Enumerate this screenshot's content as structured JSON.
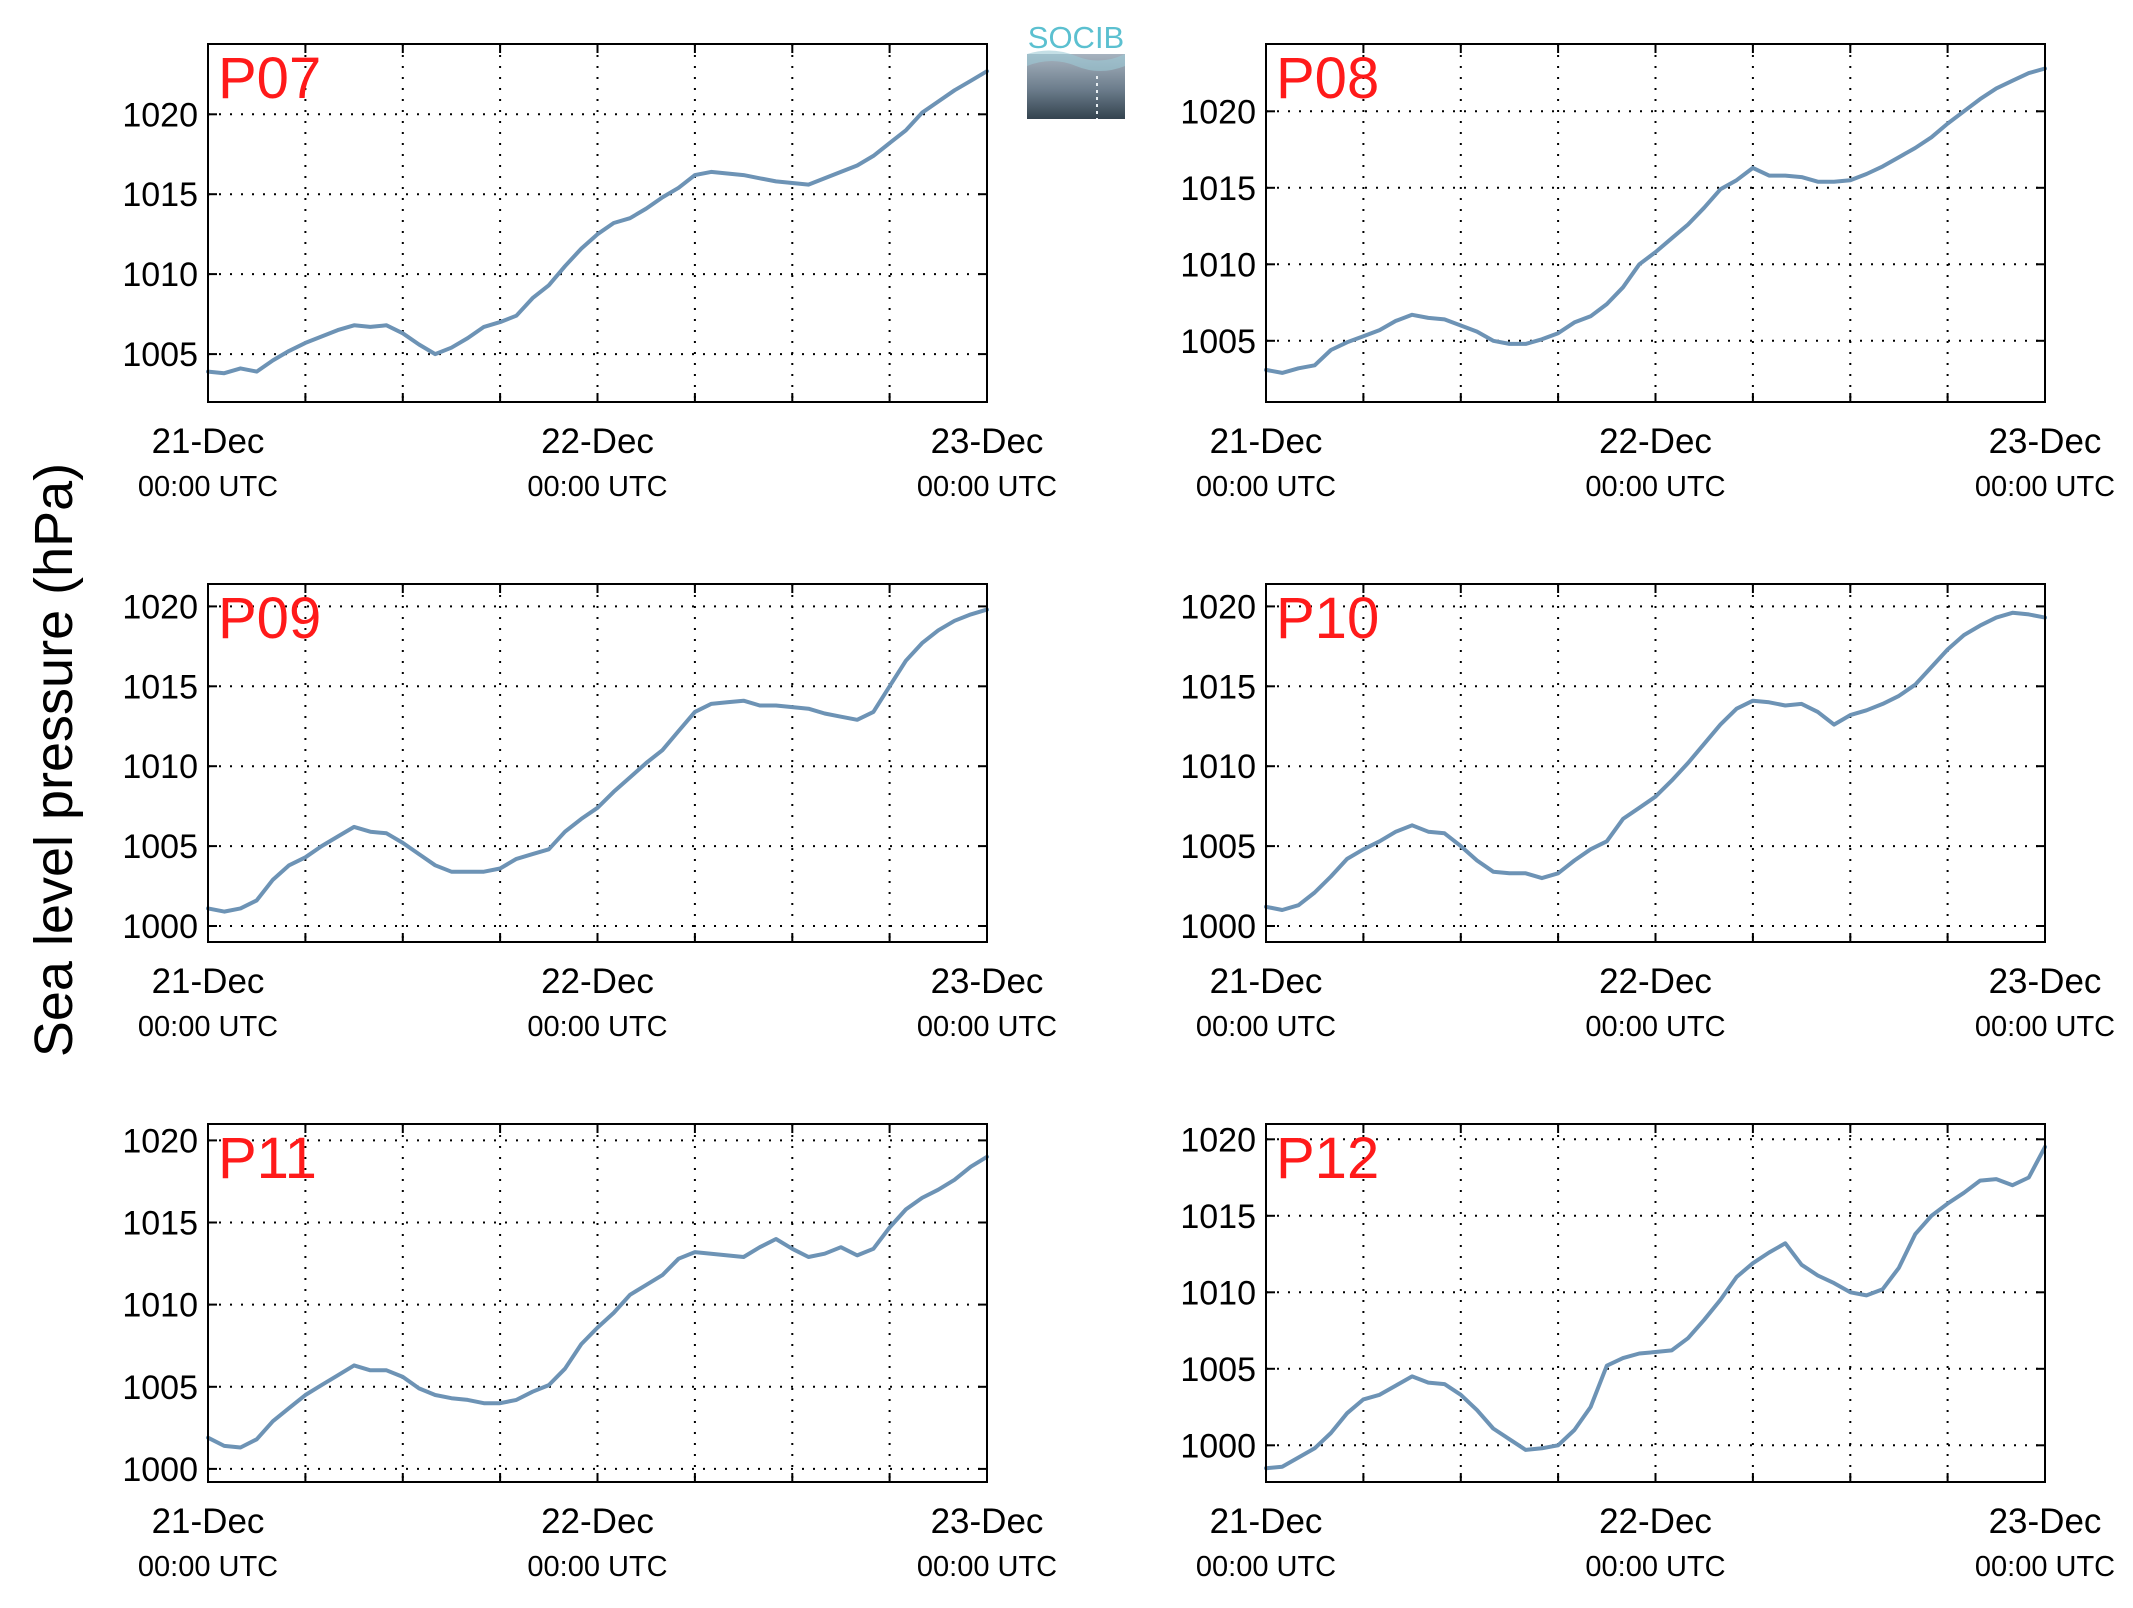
{
  "ylabel": "Sea level pressure (hPa)",
  "logo": {
    "text": "SOCIB"
  },
  "colors": {
    "line": "#6d93b5",
    "panel_label": "#ff1a1a",
    "logo_text": "#5bc0d0"
  },
  "chart_data": [
    {
      "type": "line",
      "label": "P07",
      "x_ticks": [
        "21-Dec",
        "22-Dec",
        "23-Dec"
      ],
      "x_tick_sub": [
        "00:00 UTC",
        "00:00 UTC",
        "00:00 UTC"
      ],
      "xlim": [
        0,
        48
      ],
      "ylim": [
        1002.0,
        1024.4
      ],
      "yticks": [
        1005,
        1010,
        1015,
        1020
      ],
      "grid": true,
      "x": [
        0,
        1,
        2,
        3,
        4,
        5,
        6,
        7,
        8,
        9,
        10,
        11,
        12,
        13,
        14,
        15,
        16,
        17,
        18,
        19,
        20,
        21,
        22,
        23,
        24,
        25,
        26,
        27,
        28,
        29,
        30,
        31,
        32,
        33,
        34,
        35,
        36,
        37,
        38,
        39,
        40,
        41,
        42,
        43,
        44,
        45,
        46,
        47,
        48
      ],
      "y": [
        1003.9,
        1003.8,
        1004.1,
        1003.9,
        1004.6,
        1005.2,
        1005.7,
        1006.1,
        1006.5,
        1006.8,
        1006.7,
        1006.8,
        1006.3,
        1005.6,
        1005.0,
        1005.4,
        1006.0,
        1006.7,
        1007.0,
        1007.4,
        1008.5,
        1009.3,
        1010.5,
        1011.6,
        1012.5,
        1013.2,
        1013.5,
        1014.1,
        1014.8,
        1015.4,
        1016.2,
        1016.4,
        1016.3,
        1016.2,
        1016.0,
        1015.8,
        1015.7,
        1015.6,
        1016.0,
        1016.4,
        1016.8,
        1017.4,
        1018.2,
        1019.0,
        1020.1,
        1020.8,
        1021.5,
        1022.1,
        1022.7
      ]
    },
    {
      "type": "line",
      "label": "P08",
      "x_ticks": [
        "21-Dec",
        "22-Dec",
        "23-Dec"
      ],
      "x_tick_sub": [
        "00:00 UTC",
        "00:00 UTC",
        "00:00 UTC"
      ],
      "xlim": [
        0,
        48
      ],
      "ylim": [
        1001.0,
        1024.4
      ],
      "yticks": [
        1005,
        1010,
        1015,
        1020
      ],
      "grid": true,
      "x": [
        0,
        1,
        2,
        3,
        4,
        5,
        6,
        7,
        8,
        9,
        10,
        11,
        12,
        13,
        14,
        15,
        16,
        17,
        18,
        19,
        20,
        21,
        22,
        23,
        24,
        25,
        26,
        27,
        28,
        29,
        30,
        31,
        32,
        33,
        34,
        35,
        36,
        37,
        38,
        39,
        40,
        41,
        42,
        43,
        44,
        45,
        46,
        47,
        48
      ],
      "y": [
        1003.1,
        1002.9,
        1003.2,
        1003.4,
        1004.4,
        1004.9,
        1005.3,
        1005.7,
        1006.3,
        1006.7,
        1006.5,
        1006.4,
        1006.0,
        1005.6,
        1005.0,
        1004.8,
        1004.8,
        1005.1,
        1005.5,
        1006.2,
        1006.6,
        1007.4,
        1008.5,
        1010.0,
        1010.8,
        1011.7,
        1012.6,
        1013.7,
        1014.9,
        1015.5,
        1016.3,
        1015.8,
        1015.8,
        1015.7,
        1015.4,
        1015.4,
        1015.5,
        1015.9,
        1016.4,
        1017.0,
        1017.6,
        1018.3,
        1019.2,
        1020.0,
        1020.8,
        1021.5,
        1022.0,
        1022.5,
        1022.8
      ]
    },
    {
      "type": "line",
      "label": "P09",
      "x_ticks": [
        "21-Dec",
        "22-Dec",
        "23-Dec"
      ],
      "x_tick_sub": [
        "00:00 UTC",
        "00:00 UTC",
        "00:00 UTC"
      ],
      "xlim": [
        0,
        48
      ],
      "ylim": [
        999.0,
        1021.4
      ],
      "yticks": [
        1000,
        1005,
        1010,
        1015,
        1020
      ],
      "grid": true,
      "x": [
        0,
        1,
        2,
        3,
        4,
        5,
        6,
        7,
        8,
        9,
        10,
        11,
        12,
        13,
        14,
        15,
        16,
        17,
        18,
        19,
        20,
        21,
        22,
        23,
        24,
        25,
        26,
        27,
        28,
        29,
        30,
        31,
        32,
        33,
        34,
        35,
        36,
        37,
        38,
        39,
        40,
        41,
        42,
        43,
        44,
        45,
        46,
        47,
        48
      ],
      "y": [
        1001.1,
        1000.9,
        1001.1,
        1001.6,
        1002.9,
        1003.8,
        1004.3,
        1005.0,
        1005.6,
        1006.2,
        1005.9,
        1005.8,
        1005.2,
        1004.5,
        1003.8,
        1003.4,
        1003.4,
        1003.4,
        1003.6,
        1004.2,
        1004.5,
        1004.8,
        1005.9,
        1006.7,
        1007.4,
        1008.4,
        1009.3,
        1010.2,
        1011.0,
        1012.2,
        1013.4,
        1013.9,
        1014.0,
        1014.1,
        1013.8,
        1013.8,
        1013.7,
        1013.6,
        1013.3,
        1013.1,
        1012.9,
        1013.4,
        1015.0,
        1016.6,
        1017.7,
        1018.5,
        1019.1,
        1019.5,
        1019.8
      ]
    },
    {
      "type": "line",
      "label": "P10",
      "x_ticks": [
        "21-Dec",
        "22-Dec",
        "23-Dec"
      ],
      "x_tick_sub": [
        "00:00 UTC",
        "00:00 UTC",
        "00:00 UTC"
      ],
      "xlim": [
        0,
        48
      ],
      "ylim": [
        999.0,
        1021.4
      ],
      "yticks": [
        1000,
        1005,
        1010,
        1015,
        1020
      ],
      "grid": true,
      "x": [
        0,
        1,
        2,
        3,
        4,
        5,
        6,
        7,
        8,
        9,
        10,
        11,
        12,
        13,
        14,
        15,
        16,
        17,
        18,
        19,
        20,
        21,
        22,
        23,
        24,
        25,
        26,
        27,
        28,
        29,
        30,
        31,
        32,
        33,
        34,
        35,
        36,
        37,
        38,
        39,
        40,
        41,
        42,
        43,
        44,
        45,
        46,
        47,
        48
      ],
      "y": [
        1001.2,
        1001.0,
        1001.3,
        1002.1,
        1003.1,
        1004.2,
        1004.8,
        1005.3,
        1005.9,
        1006.3,
        1005.9,
        1005.8,
        1005.0,
        1004.1,
        1003.4,
        1003.3,
        1003.3,
        1003.0,
        1003.3,
        1004.1,
        1004.8,
        1005.3,
        1006.7,
        1007.4,
        1008.1,
        1009.1,
        1010.2,
        1011.4,
        1012.6,
        1013.6,
        1014.1,
        1014.0,
        1013.8,
        1013.9,
        1013.4,
        1012.6,
        1013.2,
        1013.5,
        1013.9,
        1014.4,
        1015.1,
        1016.2,
        1017.3,
        1018.2,
        1018.8,
        1019.3,
        1019.6,
        1019.5,
        1019.3
      ]
    },
    {
      "type": "line",
      "label": "P11",
      "x_ticks": [
        "21-Dec",
        "22-Dec",
        "23-Dec"
      ],
      "x_tick_sub": [
        "00:00 UTC",
        "00:00 UTC",
        "00:00 UTC"
      ],
      "xlim": [
        0,
        48
      ],
      "ylim": [
        999.2,
        1021.0
      ],
      "yticks": [
        1000,
        1005,
        1010,
        1015,
        1020
      ],
      "grid": true,
      "x": [
        0,
        1,
        2,
        3,
        4,
        5,
        6,
        7,
        8,
        9,
        10,
        11,
        12,
        13,
        14,
        15,
        16,
        17,
        18,
        19,
        20,
        21,
        22,
        23,
        24,
        25,
        26,
        27,
        28,
        29,
        30,
        31,
        32,
        33,
        34,
        35,
        36,
        37,
        38,
        39,
        40,
        41,
        42,
        43,
        44,
        45,
        46,
        47,
        48
      ],
      "y": [
        1001.9,
        1001.4,
        1001.3,
        1001.8,
        1002.9,
        1003.7,
        1004.5,
        1005.1,
        1005.7,
        1006.3,
        1006.0,
        1006.0,
        1005.6,
        1004.9,
        1004.5,
        1004.3,
        1004.2,
        1004.0,
        1004.0,
        1004.2,
        1004.7,
        1005.1,
        1006.1,
        1007.6,
        1008.6,
        1009.5,
        1010.6,
        1011.2,
        1011.8,
        1012.8,
        1013.2,
        1013.1,
        1013.0,
        1012.9,
        1013.5,
        1014.0,
        1013.4,
        1012.9,
        1013.1,
        1013.5,
        1013.0,
        1013.4,
        1014.7,
        1015.8,
        1016.5,
        1017.0,
        1017.6,
        1018.4,
        1019.0
      ]
    },
    {
      "type": "line",
      "label": "P12",
      "x_ticks": [
        "21-Dec",
        "22-Dec",
        "23-Dec"
      ],
      "x_tick_sub": [
        "00:00 UTC",
        "00:00 UTC",
        "00:00 UTC"
      ],
      "xlim": [
        0,
        48
      ],
      "ylim": [
        997.6,
        1021.0
      ],
      "yticks": [
        1000,
        1005,
        1010,
        1015,
        1020
      ],
      "grid": true,
      "x": [
        0,
        1,
        2,
        3,
        4,
        5,
        6,
        7,
        8,
        9,
        10,
        11,
        12,
        13,
        14,
        15,
        16,
        17,
        18,
        19,
        20,
        21,
        22,
        23,
        24,
        25,
        26,
        27,
        28,
        29,
        30,
        31,
        32,
        33,
        34,
        35,
        36,
        37,
        38,
        39,
        40,
        41,
        42,
        43,
        44,
        45,
        46,
        47,
        48
      ],
      "y": [
        998.5,
        998.6,
        999.2,
        999.8,
        1000.8,
        1002.1,
        1003.0,
        1003.3,
        1003.9,
        1004.5,
        1004.1,
        1004.0,
        1003.3,
        1002.3,
        1001.1,
        1000.4,
        999.7,
        999.8,
        1000.0,
        1001.0,
        1002.5,
        1005.2,
        1005.7,
        1006.0,
        1006.1,
        1006.2,
        1007.0,
        1008.2,
        1009.5,
        1011.0,
        1011.9,
        1012.6,
        1013.2,
        1011.8,
        1011.1,
        1010.6,
        1010.0,
        1009.8,
        1010.2,
        1011.6,
        1013.8,
        1015.0,
        1015.8,
        1016.5,
        1017.3,
        1017.4,
        1017.0,
        1017.5,
        1019.5
      ]
    }
  ]
}
